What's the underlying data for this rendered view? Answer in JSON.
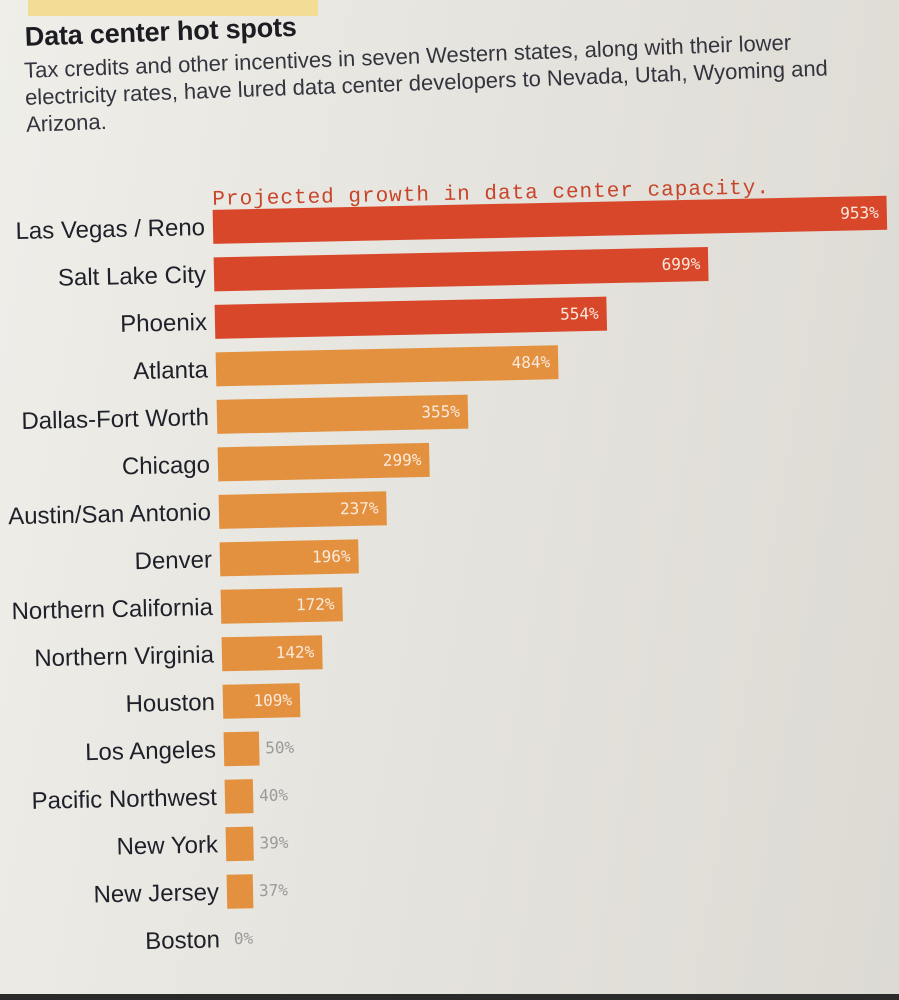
{
  "header": {
    "title": "Data center hot spots",
    "subtitle": "Tax credits and other incentives in seven Western states, along with their lower electricity rates, have lured data center developers to Nevada, Utah, Wyoming and Arizona."
  },
  "chart_data": {
    "type": "bar",
    "orientation": "horizontal",
    "title": "Projected growth in data center capacity.",
    "categories": [
      "Las Vegas / Reno",
      "Salt Lake City",
      "Phoenix",
      "Atlanta",
      "Dallas-Fort Worth",
      "Chicago",
      "Austin/San Antonio",
      "Denver",
      "Northern California",
      "Northern Virginia",
      "Houston",
      "Los Angeles",
      "Pacific Northwest",
      "New York",
      "New Jersey",
      "Boston"
    ],
    "values": [
      953,
      699,
      554,
      484,
      355,
      299,
      237,
      196,
      172,
      142,
      109,
      50,
      40,
      39,
      37,
      0
    ],
    "value_labels": [
      "953%",
      "699%",
      "554%",
      "484%",
      "355%",
      "299%",
      "237%",
      "196%",
      "172%",
      "142%",
      "109%",
      "50%",
      "40%",
      "39%",
      "37%",
      "0%"
    ],
    "highlight_count": 3,
    "unit": "%",
    "xlim": [
      0,
      953
    ],
    "colors": {
      "highlight": "#d9472a",
      "default": "#e3913f",
      "label_inside": "#fbe9dc",
      "label_outside": "#9a9a9a"
    }
  }
}
